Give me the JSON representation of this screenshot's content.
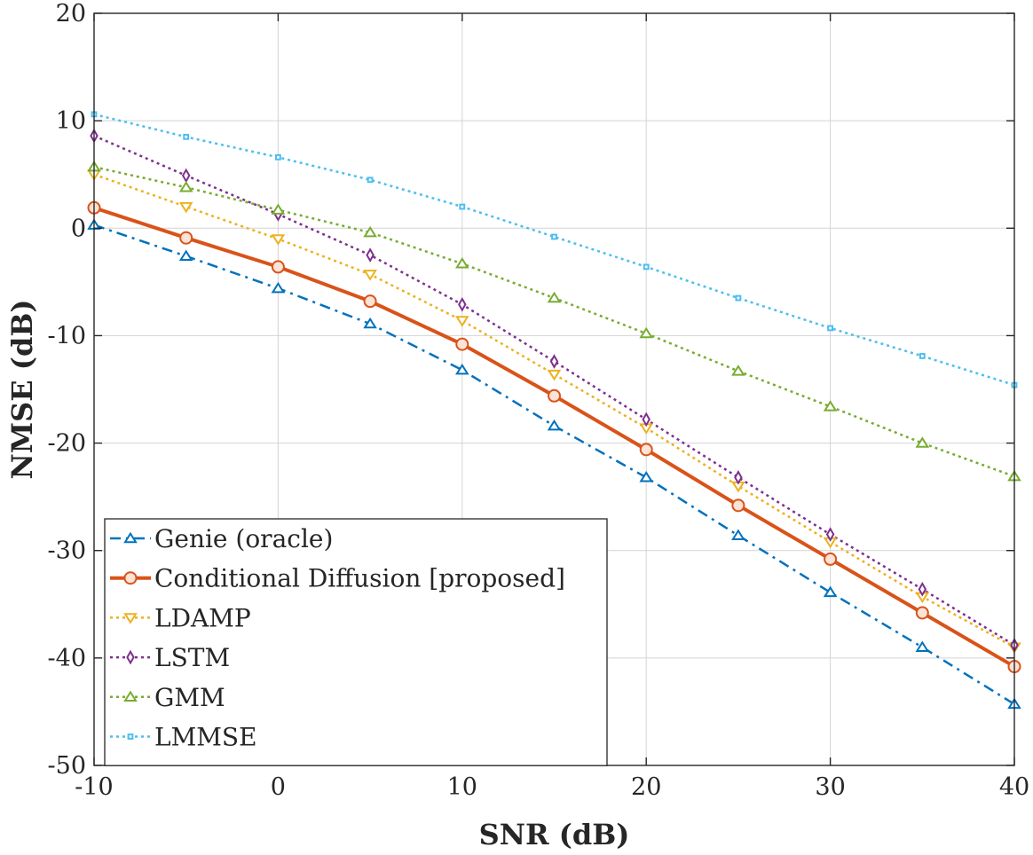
{
  "chart_data": {
    "type": "line",
    "title": "",
    "xlabel": "SNR (dB)",
    "ylabel": "NMSE (dB)",
    "xlim": [
      -10,
      40
    ],
    "ylim": [
      -50,
      20
    ],
    "xticks": [
      -10,
      0,
      10,
      20,
      30,
      40
    ],
    "yticks": [
      20,
      10,
      0,
      -10,
      -20,
      -30,
      -40,
      -50
    ],
    "grid": true,
    "legend_position": "bottom-left",
    "x": [
      -10,
      -5,
      0,
      5,
      10,
      15,
      20,
      25,
      30,
      35,
      40
    ],
    "series": [
      {
        "name": "Genie (oracle)",
        "color": "#0072bd",
        "dash": "dashdot",
        "marker": "triangle-up",
        "width": 2.5,
        "values": [
          0.3,
          -2.6,
          -5.6,
          -8.9,
          -13.2,
          -18.4,
          -23.2,
          -28.6,
          -33.9,
          -39.0,
          -44.3
        ]
      },
      {
        "name": "Conditional Diffusion [proposed]",
        "color": "#d95319",
        "dash": "solid",
        "marker": "circle",
        "width": 4,
        "values": [
          1.9,
          -0.9,
          -3.6,
          -6.8,
          -10.8,
          -15.6,
          -20.6,
          -25.8,
          -30.8,
          -35.8,
          -40.8
        ]
      },
      {
        "name": "LDAMP",
        "color": "#edb120",
        "dash": "dotted",
        "marker": "triangle-down",
        "width": 2.5,
        "values": [
          5.0,
          2.0,
          -1.0,
          -4.3,
          -8.6,
          -13.6,
          -18.6,
          -24.0,
          -29.2,
          -34.3,
          -39.0
        ]
      },
      {
        "name": "LSTM",
        "color": "#7e2f8e",
        "dash": "dotted",
        "marker": "diamond",
        "width": 2.5,
        "values": [
          8.6,
          4.9,
          1.3,
          -2.5,
          -7.1,
          -12.4,
          -17.8,
          -23.2,
          -28.5,
          -33.6,
          -38.8
        ]
      },
      {
        "name": "GMM",
        "color": "#77ac30",
        "dash": "dotted",
        "marker": "triangle-up",
        "width": 2.5,
        "values": [
          5.7,
          3.8,
          1.7,
          -0.4,
          -3.3,
          -6.5,
          -9.8,
          -13.3,
          -16.6,
          -20.0,
          -23.1
        ]
      },
      {
        "name": "LMMSE",
        "color": "#4dbeee",
        "dash": "dotted",
        "marker": "square",
        "width": 2.5,
        "values": [
          10.6,
          8.5,
          6.6,
          4.5,
          2.0,
          -0.8,
          -3.6,
          -6.5,
          -9.3,
          -11.9,
          -14.6
        ]
      }
    ]
  }
}
